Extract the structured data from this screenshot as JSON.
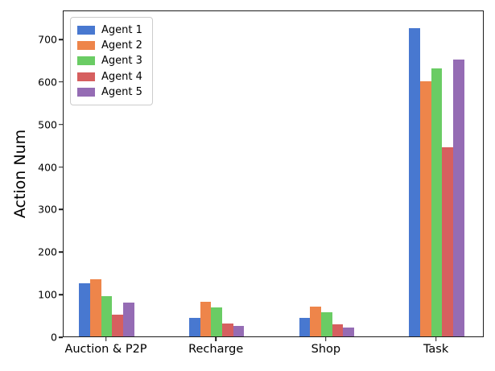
{
  "chart_data": {
    "type": "bar",
    "title": "",
    "xlabel": "",
    "ylabel": "Action Num",
    "categories": [
      "Auction & P2P",
      "Recharge",
      "Shop",
      "Task"
    ],
    "series": [
      {
        "name": "Agent 1",
        "color": "#4878d0",
        "values": [
          125,
          44,
          44,
          725
        ]
      },
      {
        "name": "Agent 2",
        "color": "#ee854a",
        "values": [
          135,
          81,
          70,
          600
        ]
      },
      {
        "name": "Agent 3",
        "color": "#6acc64",
        "values": [
          95,
          68,
          57,
          630
        ]
      },
      {
        "name": "Agent 4",
        "color": "#d65f5f",
        "values": [
          52,
          30,
          28,
          445
        ]
      },
      {
        "name": "Agent 5",
        "color": "#956cb4",
        "values": [
          80,
          25,
          20,
          650
        ]
      }
    ],
    "yticks": [
      0,
      100,
      200,
      300,
      400,
      500,
      600,
      700
    ],
    "ylim": [
      0,
      768
    ],
    "legend_position": "upper left",
    "grid": false
  }
}
